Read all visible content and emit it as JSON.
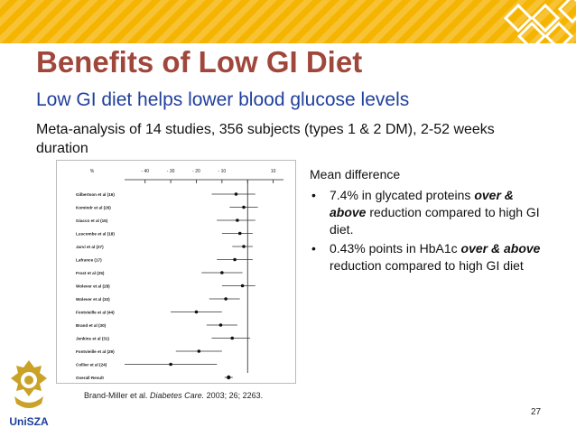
{
  "slide": {
    "title": "Benefits of Low GI Diet",
    "subtitle": "Low GI diet helps lower blood glucose levels",
    "meta": "Meta-analysis of 14 studies, 356 subjects (types 1 & 2 DM), 2-52 weeks duration",
    "page_number": "27"
  },
  "mean_difference": {
    "heading": "Mean difference",
    "bullet_symbol": "•",
    "items": [
      {
        "pre": "7.4% in glycated proteins ",
        "em": "over & above",
        "post": " reduction compared to high GI diet."
      },
      {
        "pre": "0.43% points in HbA1c ",
        "em": "over & above",
        "post": " reduction compared to high GI diet"
      }
    ]
  },
  "citation": {
    "authors": "Brand-Miller et al.",
    "journal": "Diabetes Care.",
    "details": "2003; 26; 2263."
  },
  "logo": {
    "text": "UniSZA"
  },
  "colors": {
    "title": "#a0473c",
    "subtitle": "#1f3f9b",
    "topbar": "#f4b400"
  },
  "chart_data": {
    "type": "scatter",
    "x_tick_labels": [
      "%",
      "- 40",
      "- 30",
      "- 20",
      "- 10",
      "",
      "10"
    ],
    "x_ticks": [
      -40,
      -30,
      -20,
      -10,
      0,
      10
    ],
    "xlim": [
      -48,
      14
    ],
    "studies": [
      {
        "label": "Gilbertson et al (16)",
        "mean": -4.5,
        "low": -14,
        "high": 3
      },
      {
        "label": "Komindr et al (26)",
        "mean": -1.5,
        "low": -7,
        "high": 4
      },
      {
        "label": "Giacco et al (15)",
        "mean": -4,
        "low": -12,
        "high": 3
      },
      {
        "label": "Luscombe et al (18)",
        "mean": -3,
        "low": -10,
        "high": 2
      },
      {
        "label": "Jarvi et al (27)",
        "mean": -1.5,
        "low": -6,
        "high": 2
      },
      {
        "label": "Lafrance (17)",
        "mean": -5,
        "low": -12,
        "high": 2
      },
      {
        "label": "Frost et al (25)",
        "mean": -10,
        "low": -18,
        "high": -2
      },
      {
        "label": "Wolever et al (28)",
        "mean": -2,
        "low": -10,
        "high": 3
      },
      {
        "label": "Wolever et al (32)",
        "mean": -8.5,
        "low": -15,
        "high": -3
      },
      {
        "label": "Fontvieille et al (44)",
        "mean": -20,
        "low": -30,
        "high": -10
      },
      {
        "label": "Brand et al (30)",
        "mean": -10.5,
        "low": -16,
        "high": -4
      },
      {
        "label": "Jenkins et al (31)",
        "mean": -6,
        "low": -14,
        "high": 1
      },
      {
        "label": "Fontvieille et al (29)",
        "mean": -19,
        "low": -28,
        "high": -10
      },
      {
        "label": "Collier et al (24)",
        "mean": -30,
        "low": -48,
        "high": -12
      },
      {
        "label": "Overall Result",
        "mean": -7.4,
        "low": -9,
        "high": -5.8
      }
    ]
  }
}
